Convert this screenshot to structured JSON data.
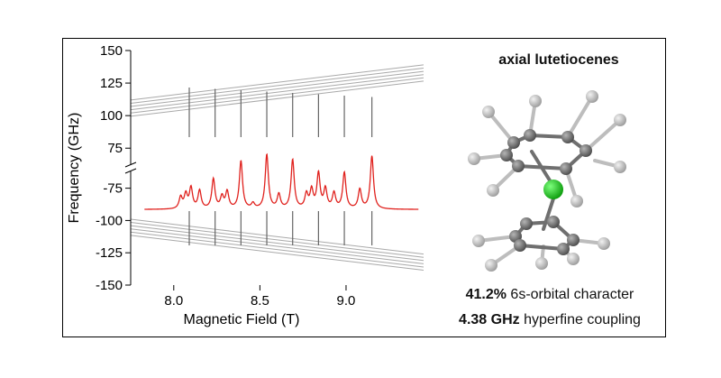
{
  "chart_data": {
    "type": "line",
    "xlabel": "Magnetic Field (T)",
    "ylabel": "Frequency (GHz)",
    "xlim": [
      7.75,
      9.45
    ],
    "x_ticks": [
      "8.0",
      "8.5",
      "9.0"
    ],
    "y_ticks_upper": [
      "150",
      "125",
      "100",
      "75"
    ],
    "y_ticks_lower": [
      "-75",
      "-100",
      "-125",
      "-150"
    ],
    "ylim_upper": [
      62,
      150
    ],
    "ylim_lower": [
      -150,
      -62
    ],
    "axis_break": true,
    "grid": false,
    "colors": {
      "spectrum": "#e0211d",
      "levels": "#a9a9a9",
      "transitions": "#666666"
    },
    "levels_upper": [
      {
        "x": [
          7.75,
          9.45
        ],
        "y": [
          112,
          139
        ]
      },
      {
        "x": [
          7.75,
          9.45
        ],
        "y": [
          109.5,
          136.5
        ]
      },
      {
        "x": [
          7.75,
          9.45
        ],
        "y": [
          107,
          134
        ]
      },
      {
        "x": [
          7.75,
          9.45
        ],
        "y": [
          104.5,
          131.5
        ]
      },
      {
        "x": [
          7.75,
          9.45
        ],
        "y": [
          102,
          129
        ]
      },
      {
        "x": [
          7.75,
          9.45
        ],
        "y": [
          99.5,
          126.5
        ]
      }
    ],
    "levels_lower": [
      {
        "x": [
          7.75,
          9.45
        ],
        "y": [
          -99,
          -126
        ]
      },
      {
        "x": [
          7.75,
          9.45
        ],
        "y": [
          -101.5,
          -128.5
        ]
      },
      {
        "x": [
          7.75,
          9.45
        ],
        "y": [
          -104,
          -131
        ]
      },
      {
        "x": [
          7.75,
          9.45
        ],
        "y": [
          -106.5,
          -133.5
        ]
      },
      {
        "x": [
          7.75,
          9.45
        ],
        "y": [
          -109,
          -136
        ]
      },
      {
        "x": [
          7.75,
          9.45
        ],
        "y": [
          -111.5,
          -138.5
        ]
      }
    ],
    "transitions_x": [
      8.09,
      8.24,
      8.39,
      8.54,
      8.69,
      8.84,
      8.99,
      9.15
    ],
    "spectrum": {
      "baseline": -91.5,
      "x_range": [
        7.83,
        9.42
      ],
      "peaks": [
        {
          "x": 8.04,
          "height": 9
        },
        {
          "x": 8.07,
          "height": 11
        },
        {
          "x": 8.1,
          "height": 16
        },
        {
          "x": 8.15,
          "height": 14
        },
        {
          "x": 8.23,
          "height": 23
        },
        {
          "x": 8.28,
          "height": 9
        },
        {
          "x": 8.31,
          "height": 13
        },
        {
          "x": 8.39,
          "height": 37
        },
        {
          "x": 8.46,
          "height": 4
        },
        {
          "x": 8.54,
          "height": 42
        },
        {
          "x": 8.61,
          "height": 11
        },
        {
          "x": 8.69,
          "height": 38
        },
        {
          "x": 8.77,
          "height": 11
        },
        {
          "x": 8.8,
          "height": 14
        },
        {
          "x": 8.84,
          "height": 27
        },
        {
          "x": 8.88,
          "height": 15
        },
        {
          "x": 8.93,
          "height": 12
        },
        {
          "x": 8.99,
          "height": 28
        },
        {
          "x": 9.08,
          "height": 15
        },
        {
          "x": 9.15,
          "height": 41
        }
      ]
    }
  },
  "panel": {
    "title": "axial lutetiocenes",
    "caption1_bold": "41.2%",
    "caption1_rest": " 6s-orbital character",
    "caption2_bold": "4.38 GHz",
    "caption2_rest": " hyperfine coupling"
  }
}
